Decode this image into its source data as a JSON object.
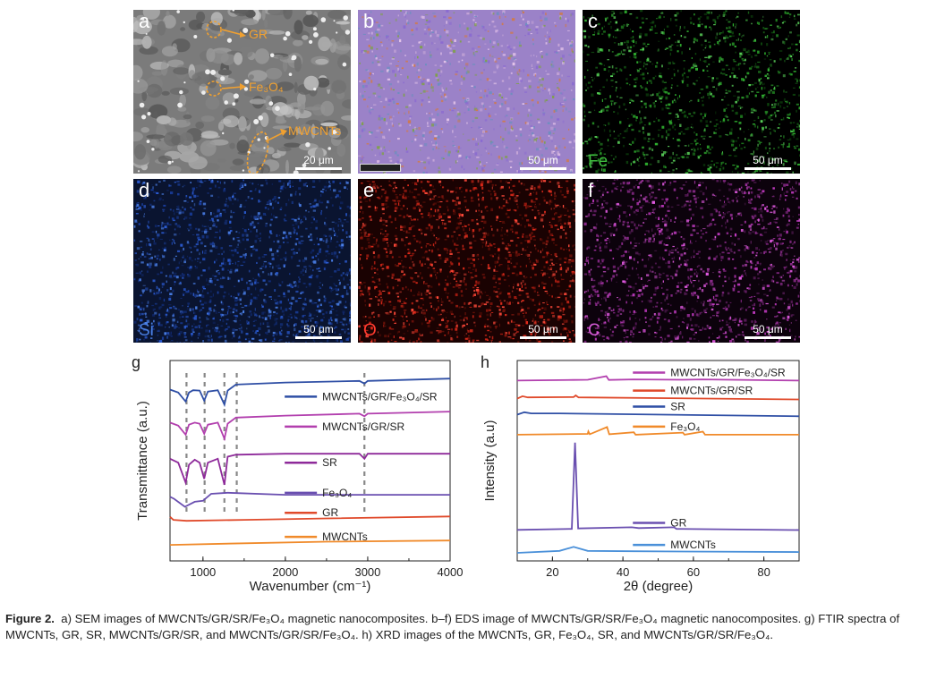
{
  "figure": {
    "panels": [
      {
        "letter": "a",
        "scale": "20 μm",
        "labels": [
          "GR",
          "Fe₃O₄",
          "MWCNTs"
        ],
        "theme": "sem",
        "overlay_text": "",
        "overlay_color": "#ffffff"
      },
      {
        "letter": "b",
        "scale": "50 μm",
        "theme": "composite",
        "overlay_text": "",
        "overlay_color": "#ffffff"
      },
      {
        "letter": "c",
        "scale": "50 μm",
        "theme": "green",
        "overlay_text": "Fe",
        "overlay_color": "#3fbe3f"
      },
      {
        "letter": "d",
        "scale": "50 μm",
        "theme": "blue",
        "overlay_text": "Si",
        "overlay_color": "#4a7fe0"
      },
      {
        "letter": "e",
        "scale": "50 μm",
        "theme": "red",
        "overlay_text": "O",
        "overlay_color": "#ff3b30"
      },
      {
        "letter": "f",
        "scale": "50 μm",
        "theme": "magenta",
        "overlay_text": "C",
        "overlay_color": "#d25ad2"
      }
    ],
    "caption": {
      "bold": "Figure 2.",
      "text": "a) SEM images of MWCNTs/GR/SR/Fe₃O₄ magnetic nanocomposites. b–f) EDS image of MWCNTs/GR/SR/Fe₃O₄ magnetic nanocomposites. g) FTIR spectra of MWCNTs, GR, SR, MWCNTs/GR/SR, and MWCNTs/GR/SR/Fe₃O₄. h) XRD images of the MWCNTs, GR, Fe₃O₄, SR, and MWCNTs/GR/SR/Fe₃O₄."
    }
  },
  "chart_data": [
    {
      "panel": "g",
      "type": "line",
      "xlabel": "Wavenumber (cm⁻¹)",
      "ylabel": "Transmittance (a.u.)",
      "xlim": [
        600,
        4000
      ],
      "xticks": [
        1000,
        2000,
        3000,
        4000
      ],
      "dashed_markers_x": [
        800,
        1020,
        1260,
        1410,
        2960
      ],
      "series": [
        {
          "name": "MWCNTs/GR/Fe₃O₄/SR",
          "color": "#2f4fa5",
          "offset": 0.78,
          "points": [
            [
              600,
              0.075
            ],
            [
              700,
              0.06
            ],
            [
              790,
              0.015
            ],
            [
              830,
              0.06
            ],
            [
              880,
              0.072
            ],
            [
              960,
              0.07
            ],
            [
              1015,
              0.02
            ],
            [
              1060,
              0.065
            ],
            [
              1180,
              0.072
            ],
            [
              1260,
              0.0
            ],
            [
              1300,
              0.07
            ],
            [
              1400,
              0.1
            ],
            [
              2000,
              0.11
            ],
            [
              2900,
              0.118
            ],
            [
              2960,
              0.105
            ],
            [
              3000,
              0.118
            ],
            [
              4000,
              0.13
            ]
          ]
        },
        {
          "name": "MWCNTs/GR/SR",
          "color": "#b23fae",
          "offset": 0.63,
          "points": [
            [
              600,
              0.06
            ],
            [
              700,
              0.045
            ],
            [
              790,
              0.0
            ],
            [
              830,
              0.05
            ],
            [
              900,
              0.06
            ],
            [
              960,
              0.055
            ],
            [
              1015,
              0.005
            ],
            [
              1060,
              0.05
            ],
            [
              1180,
              0.06
            ],
            [
              1260,
              -0.02
            ],
            [
              1300,
              0.055
            ],
            [
              1400,
              0.085
            ],
            [
              2000,
              0.095
            ],
            [
              2900,
              0.105
            ],
            [
              2960,
              0.092
            ],
            [
              3000,
              0.105
            ],
            [
              4000,
              0.115
            ]
          ]
        },
        {
          "name": "SR",
          "color": "#8e2a9a",
          "offset": 0.45,
          "points": [
            [
              600,
              0.06
            ],
            [
              700,
              0.04
            ],
            [
              790,
              -0.06
            ],
            [
              830,
              0.03
            ],
            [
              900,
              0.055
            ],
            [
              960,
              0.04
            ],
            [
              1015,
              -0.04
            ],
            [
              1060,
              0.04
            ],
            [
              1180,
              0.06
            ],
            [
              1260,
              -0.07
            ],
            [
              1300,
              0.07
            ],
            [
              1400,
              0.08
            ],
            [
              2000,
              0.085
            ],
            [
              2900,
              0.085
            ],
            [
              2960,
              0.06
            ],
            [
              3000,
              0.085
            ],
            [
              4000,
              0.085
            ]
          ]
        },
        {
          "name": "Fe₃O₄",
          "color": "#6a4fb0",
          "offset": 0.3,
          "points": [
            [
              600,
              0.02
            ],
            [
              650,
              0.01
            ],
            [
              780,
              -0.03
            ],
            [
              900,
              -0.005
            ],
            [
              1000,
              0.0
            ],
            [
              1100,
              0.035
            ],
            [
              1300,
              0.04
            ],
            [
              2000,
              0.03
            ],
            [
              3000,
              0.03
            ],
            [
              4000,
              0.03
            ]
          ]
        },
        {
          "name": "GR",
          "color": "#e04a2b",
          "offset": 0.2,
          "points": [
            [
              600,
              0.02
            ],
            [
              640,
              0.005
            ],
            [
              800,
              0.0
            ],
            [
              1500,
              0.005
            ],
            [
              2500,
              0.012
            ],
            [
              4000,
              0.022
            ]
          ]
        },
        {
          "name": "MWCNTs",
          "color": "#f08a2a",
          "offset": 0.08,
          "points": [
            [
              600,
              0.0
            ],
            [
              1500,
              0.008
            ],
            [
              2500,
              0.016
            ],
            [
              4000,
              0.022
            ]
          ]
        }
      ]
    },
    {
      "panel": "h",
      "type": "line",
      "xlabel": "2θ (degree)",
      "ylabel": "Intensity (a.u)",
      "xlim": [
        10,
        90
      ],
      "xticks": [
        20,
        40,
        60,
        80
      ],
      "series": [
        {
          "name": "MWCNTs/GR/Fe₃O₄/SR",
          "color": "#b23fae",
          "offset": 0.9,
          "points": [
            [
              10,
              0.0
            ],
            [
              26,
              0.003
            ],
            [
              30,
              0.004
            ],
            [
              35.3,
              0.022
            ],
            [
              36,
              0.003
            ],
            [
              43,
              0.006
            ],
            [
              57,
              0.004
            ],
            [
              62.5,
              0.006
            ],
            [
              90,
              0.0
            ]
          ]
        },
        {
          "name": "MWCNTs/GR/SR",
          "color": "#e04a2b",
          "offset": 0.81,
          "points": [
            [
              10,
              0.0
            ],
            [
              11.5,
              0.012
            ],
            [
              13,
              0.006
            ],
            [
              26,
              0.008
            ],
            [
              26.6,
              0.016
            ],
            [
              27.4,
              0.006
            ],
            [
              90,
              -0.004
            ]
          ]
        },
        {
          "name": "SR",
          "color": "#2f4fa5",
          "offset": 0.73,
          "points": [
            [
              10,
              0.0
            ],
            [
              12,
              0.012
            ],
            [
              14,
              0.006
            ],
            [
              22,
              0.006
            ],
            [
              90,
              -0.008
            ]
          ]
        },
        {
          "name": "Fe₃O₄",
          "color": "#f08a2a",
          "offset": 0.63,
          "points": [
            [
              10,
              0.0
            ],
            [
              30,
              0.004
            ],
            [
              30.2,
              0.016
            ],
            [
              30.6,
              0.002
            ],
            [
              35.5,
              0.038
            ],
            [
              36.1,
              0.002
            ],
            [
              43.1,
              0.012
            ],
            [
              43.6,
              0.0
            ],
            [
              57,
              0.01
            ],
            [
              57.5,
              0.0
            ],
            [
              62.7,
              0.015
            ],
            [
              63.3,
              0.0
            ],
            [
              90,
              0.0
            ]
          ]
        },
        {
          "name": "GR",
          "color": "#6a4fb0",
          "offset": 0.15,
          "points": [
            [
              10,
              0.005
            ],
            [
              25.5,
              0.01
            ],
            [
              26.4,
              0.44
            ],
            [
              27.3,
              0.012
            ],
            [
              42.5,
              0.018
            ],
            [
              44.5,
              0.014
            ],
            [
              54.5,
              0.018
            ],
            [
              55.2,
              0.01
            ],
            [
              90,
              0.004
            ]
          ]
        },
        {
          "name": "MWCNTs",
          "color": "#4a90d9",
          "offset": 0.04,
          "points": [
            [
              10,
              0.0
            ],
            [
              22,
              0.01
            ],
            [
              26,
              0.03
            ],
            [
              30,
              0.01
            ],
            [
              43,
              0.008
            ],
            [
              90,
              0.004
            ]
          ]
        }
      ]
    }
  ]
}
